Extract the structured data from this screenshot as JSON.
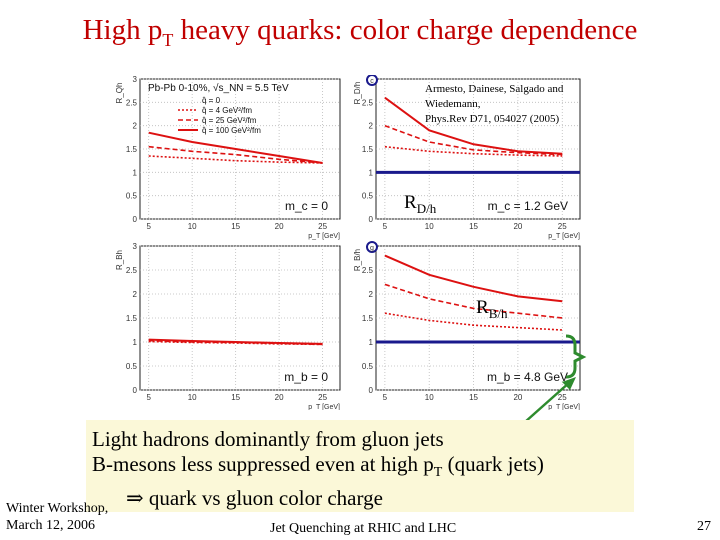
{
  "slide": {
    "title_main": "High p",
    "title_sub": "T",
    "title_rest": " heavy quarks: color charge dependence",
    "reference": [
      "Armesto, Dainese, Salgado and",
      "Wiedemann,",
      "Phys.Rev D71, 054027 (2005)"
    ],
    "rd_label": "R",
    "rd_sub": "D/h",
    "rb_label": "R",
    "rb_sub": "B/h",
    "callout": {
      "line1": "Light hadrons dominantly from gluon jets",
      "line2_pre": "B-mesons less suppressed even at high p",
      "line2_sub": "T",
      "line2_post": " (quark jets)",
      "line3": "⇒ quark vs gluon color charge"
    },
    "footer": {
      "left_line1": "Winter Workshop,",
      "left_line2": "March 12, 2006",
      "center": "Jet Quenching at RHIC and LHC",
      "page": "27"
    }
  },
  "colors": {
    "title": "#c00000",
    "curves": "#dd1111",
    "navy": "#1a1a8c",
    "green": "#2e8b2e",
    "callout_bg": "#fbf8d8"
  },
  "chart_data": [
    {
      "type": "line",
      "panel": "top-left",
      "ylabel": "R_Qh",
      "xlabel": "p_T [GeV]",
      "xlim": [
        4,
        27
      ],
      "ylim": [
        0,
        3
      ],
      "xticks": [
        5,
        10,
        15,
        20,
        25
      ],
      "yticks": [
        0,
        0.5,
        1,
        1.5,
        2,
        2.5,
        3
      ],
      "legend_header": "Pb-Pb 0-10%, √s_NN = 5.5 TeV",
      "legend": [
        "q̂ = 0",
        "q̂ = 4 GeV²/fm",
        "q̂ = 25 GeV²/fm",
        "q̂ = 100 GeV²/fm"
      ],
      "annotation": "m_c = 0",
      "x": [
        5,
        10,
        15,
        20,
        25
      ],
      "series": [
        {
          "name": "q̂ = 100 GeV²/fm",
          "style": "solid",
          "values": [
            1.85,
            1.65,
            1.5,
            1.35,
            1.2
          ]
        },
        {
          "name": "q̂ = 25 GeV²/fm",
          "style": "dashed",
          "values": [
            1.55,
            1.45,
            1.38,
            1.28,
            1.2
          ]
        },
        {
          "name": "q̂ = 4 GeV²/fm",
          "style": "dotted",
          "values": [
            1.35,
            1.3,
            1.25,
            1.22,
            1.2
          ]
        }
      ]
    },
    {
      "type": "line",
      "panel": "top-right",
      "ylabel": "R_D/h",
      "xlabel": "p_T [GeV]",
      "xlim": [
        4,
        27
      ],
      "ylim": [
        0,
        3
      ],
      "xticks": [
        5,
        10,
        15,
        20,
        25
      ],
      "yticks": [
        0,
        0.5,
        1,
        1.5,
        2,
        2.5,
        3
      ],
      "annotation": "m_c = 1.2 GeV",
      "panel_label": "c",
      "x": [
        5,
        10,
        15,
        20,
        25
      ],
      "series": [
        {
          "name": "q̂ = 100 GeV²/fm",
          "style": "solid",
          "values": [
            2.6,
            1.9,
            1.6,
            1.45,
            1.4
          ]
        },
        {
          "name": "q̂ = 25 GeV²/fm",
          "style": "dashed",
          "values": [
            2.0,
            1.65,
            1.48,
            1.42,
            1.38
          ]
        },
        {
          "name": "q̂ = 4 GeV²/fm",
          "style": "dotted",
          "values": [
            1.55,
            1.45,
            1.4,
            1.37,
            1.35
          ]
        }
      ],
      "reference_line": 1
    },
    {
      "type": "line",
      "panel": "bottom-left",
      "ylabel": "R_Bh",
      "xlabel": "p_T [GeV]",
      "xlim": [
        4,
        27
      ],
      "ylim": [
        0,
        3
      ],
      "xticks": [
        5,
        10,
        15,
        20,
        25
      ],
      "yticks": [
        0,
        0.5,
        1,
        1.5,
        2,
        2.5,
        3
      ],
      "annotation": "m_b = 0",
      "x": [
        5,
        10,
        15,
        20,
        25
      ],
      "series": [
        {
          "name": "q̂ = 100 GeV²/fm",
          "style": "solid",
          "values": [
            1.05,
            1.02,
            1.0,
            0.98,
            0.96
          ]
        },
        {
          "name": "q̂ = 25 GeV²/fm",
          "style": "dashed",
          "values": [
            1.03,
            1.0,
            0.99,
            0.97,
            0.95
          ]
        },
        {
          "name": "q̂ = 4 GeV²/fm",
          "style": "dotted",
          "values": [
            1.01,
            0.99,
            0.98,
            0.96,
            0.95
          ]
        }
      ]
    },
    {
      "type": "line",
      "panel": "bottom-right",
      "ylabel": "R_B/h",
      "xlabel": "p_T [GeV]",
      "xlim": [
        4,
        27
      ],
      "ylim": [
        0,
        3
      ],
      "xticks": [
        5,
        10,
        15,
        20,
        25
      ],
      "yticks": [
        0,
        0.5,
        1,
        1.5,
        2,
        2.5,
        3
      ],
      "annotation": "m_b = 4.8 GeV",
      "panel_label": "g",
      "x": [
        5,
        10,
        15,
        20,
        25
      ],
      "series": [
        {
          "name": "q̂ = 100 GeV²/fm",
          "style": "solid",
          "values": [
            2.8,
            2.4,
            2.15,
            1.95,
            1.85
          ]
        },
        {
          "name": "q̂ = 25 GeV²/fm",
          "style": "dashed",
          "values": [
            2.2,
            1.9,
            1.7,
            1.6,
            1.5
          ]
        },
        {
          "name": "q̂ = 4 GeV²/fm",
          "style": "dotted",
          "values": [
            1.6,
            1.45,
            1.35,
            1.3,
            1.25
          ]
        }
      ],
      "reference_line": 1
    }
  ]
}
